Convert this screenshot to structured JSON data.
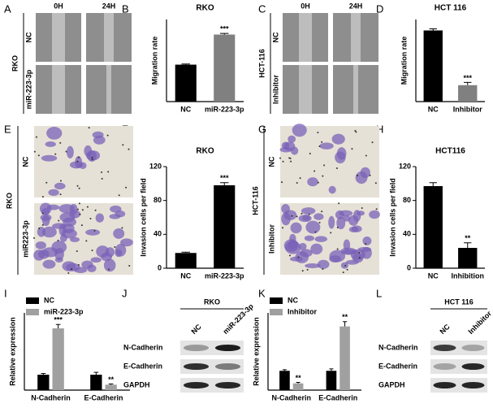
{
  "chart_data": [
    {
      "type": "bar",
      "title": "RKO",
      "ylabel": "Migration rate",
      "categories": [
        "NC",
        "miR-223-3p"
      ],
      "values": [
        0.27,
        0.49
      ],
      "errors": [
        0.005,
        0.008
      ],
      "colors": [
        "#000000",
        "#808080"
      ],
      "stars": [
        null,
        "***"
      ],
      "ylim": [
        0,
        0.6
      ]
    },
    {
      "type": "bar",
      "title": "HCT 116",
      "ylabel": "Migration rate",
      "categories": [
        "NC",
        "Inhibitor"
      ],
      "values": [
        0.52,
        0.12
      ],
      "errors": [
        0.012,
        0.02
      ],
      "colors": [
        "#000000",
        "#808080"
      ],
      "stars": [
        null,
        "***"
      ],
      "ylim": [
        0,
        0.6
      ]
    },
    {
      "type": "bar",
      "title": "RKO",
      "ylabel": "Invasion cells per field",
      "categories": [
        "NC",
        "miR-223-3p"
      ],
      "values": [
        18,
        98
      ],
      "errors": [
        1,
        3
      ],
      "colors": [
        "#000000",
        "#000000"
      ],
      "stars": [
        null,
        "***"
      ],
      "ylim": [
        0,
        120
      ],
      "yticks": [
        0,
        40,
        80,
        120
      ]
    },
    {
      "type": "bar",
      "title": "HCT116",
      "ylabel": "Invasion cells per field",
      "categories": [
        "NC",
        "Inhibition"
      ],
      "values": [
        97,
        24
      ],
      "errors": [
        4,
        6
      ],
      "colors": [
        "#000000",
        "#000000"
      ],
      "stars": [
        null,
        "**"
      ],
      "ylim": [
        0,
        120
      ],
      "yticks": [
        0,
        40,
        80,
        120
      ]
    },
    {
      "type": "bar",
      "ylabel": "Relative expression",
      "categories": [
        "N-Cadherin",
        "E-Cadherin"
      ],
      "ylim": [
        0,
        5
      ],
      "series": [
        {
          "name": "NC",
          "color": "#000000",
          "values": [
            1,
            1
          ],
          "errors": [
            0.08,
            0.15
          ]
        },
        {
          "name": "miR-223-3p",
          "color": "#a0a0a0",
          "values": [
            4.0,
            0.35
          ],
          "errors": [
            0.25,
            0.05
          ],
          "stars": [
            "***",
            "**"
          ]
        }
      ]
    },
    {
      "type": "bar",
      "ylabel": "Relative expression",
      "categories": [
        "N-Cadherin",
        "E-Cadherin"
      ],
      "ylim": [
        0,
        4
      ],
      "series": [
        {
          "name": "NC",
          "color": "#000000",
          "values": [
            1,
            1
          ],
          "errors": [
            0.06,
            0.1
          ]
        },
        {
          "name": "Inhibitor",
          "color": "#a0a0a0",
          "values": [
            0.35,
            3.3
          ],
          "errors": [
            0.05,
            0.25
          ],
          "stars": [
            "**",
            "**"
          ]
        }
      ]
    }
  ],
  "figure": {
    "letters": [
      "A",
      "B",
      "C",
      "D",
      "E",
      "F",
      "G",
      "H",
      "I",
      "J",
      "K",
      "L"
    ],
    "wound_rko": {
      "cell": "RKO",
      "cols": [
        "0H",
        "24H"
      ],
      "rows": [
        "NC",
        "miR-223-3p"
      ]
    },
    "wound_hct": {
      "cell": "HCT-116",
      "cols": [
        "0H",
        "24H"
      ],
      "rows": [
        "NC",
        "Inhibitor"
      ]
    },
    "invasion_rko": {
      "cell": "RKO",
      "rows": [
        "NC",
        "miR223-3p"
      ]
    },
    "invasion_hct": {
      "cell": "HCT-116",
      "rows": [
        "NC",
        "Inhibitor"
      ]
    },
    "blot_rko": {
      "cell": "RKO",
      "lanes": [
        "NC",
        "miR-223-3p"
      ],
      "proteins": [
        "N-Cadherin",
        "E-Cadherin",
        "GAPDH"
      ]
    },
    "blot_hct": {
      "cell": "HCT 116",
      "lanes": [
        "NC",
        "Inhibitor"
      ],
      "proteins": [
        "N-Cadherin",
        "E-Cadherin",
        "GAPDH"
      ]
    }
  }
}
